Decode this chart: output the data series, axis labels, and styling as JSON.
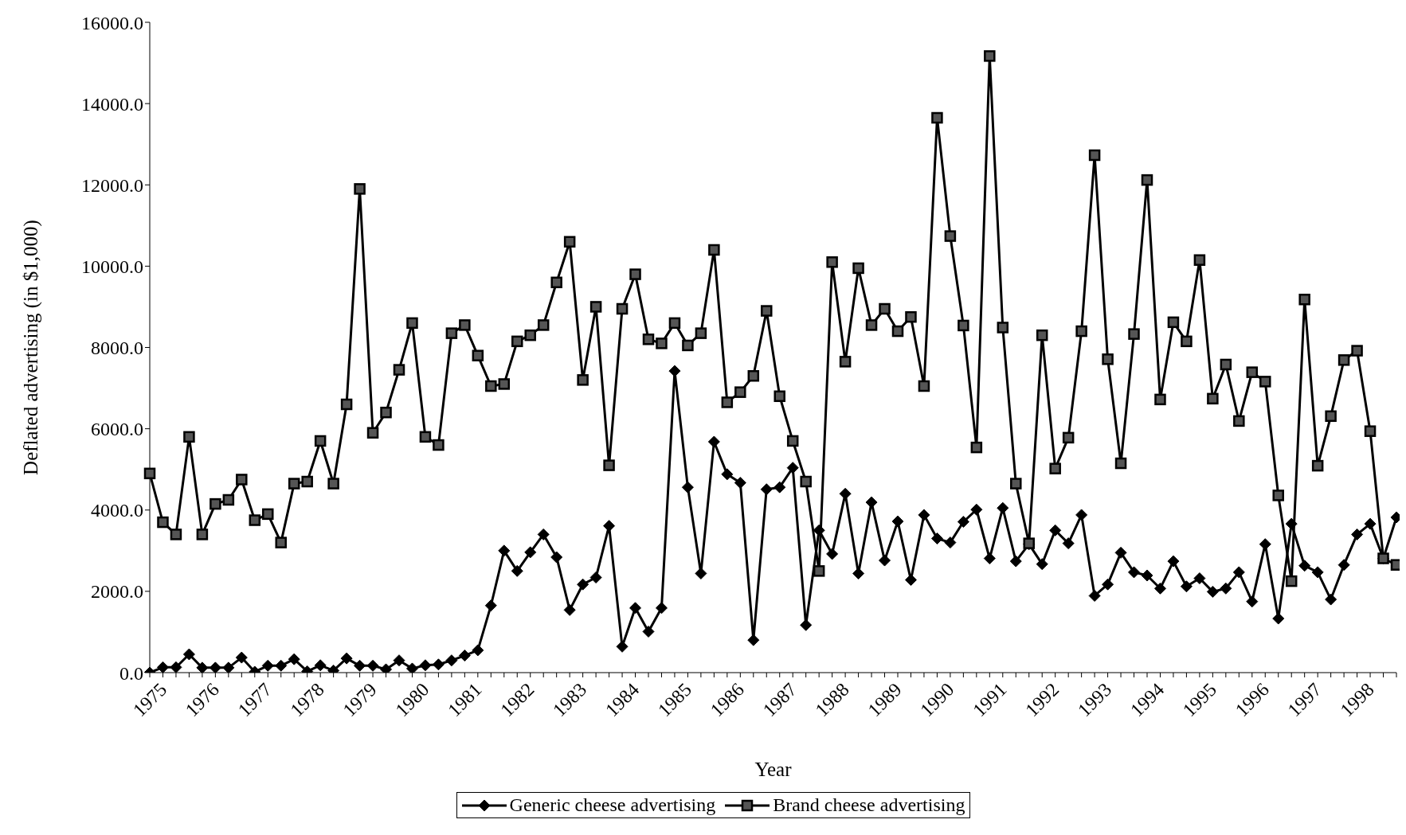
{
  "chart_data": {
    "type": "line",
    "xlabel": "Year",
    "ylabel": "Deflated advertising (in $1,000)",
    "categories": [
      "1975",
      null,
      null,
      null,
      "1976",
      null,
      null,
      null,
      "1977",
      null,
      null,
      null,
      "1978",
      null,
      null,
      null,
      "1979",
      null,
      null,
      null,
      "1980",
      null,
      null,
      null,
      "1981",
      null,
      null,
      null,
      "1982",
      null,
      null,
      null,
      "1983",
      null,
      null,
      null,
      "1984",
      null,
      null,
      null,
      "1985",
      null,
      null,
      null,
      "1986",
      null,
      null,
      null,
      "1987",
      null,
      null,
      null,
      "1988",
      null,
      null,
      null,
      "1989",
      null,
      null,
      null,
      "1990",
      null,
      null,
      null,
      "1991",
      null,
      null,
      null,
      "1992",
      null,
      null,
      null,
      "1993",
      null,
      null,
      null,
      "1994",
      null,
      null,
      null,
      "1995",
      null,
      null,
      null,
      "1996",
      null,
      null,
      null,
      "1997",
      null,
      null,
      null,
      "1998",
      null,
      null,
      null
    ],
    "series": [
      {
        "name": "Generic cheese advertising",
        "color": "#000000",
        "marker": "diamond",
        "values": [
          0,
          130,
          130,
          450,
          120,
          120,
          120,
          370,
          20,
          170,
          170,
          330,
          30,
          180,
          50,
          350,
          170,
          170,
          80,
          300,
          100,
          180,
          200,
          300,
          420,
          550,
          1650,
          3000,
          2500,
          2960,
          3400,
          2840,
          1540,
          2170,
          2340,
          3610,
          640,
          1590,
          1010,
          1590,
          7420,
          4560,
          2440,
          5680,
          4880,
          4670,
          800,
          4510,
          4560,
          5040,
          1170,
          3500,
          2920,
          4400,
          2440,
          4190,
          2760,
          3720,
          2280,
          3880,
          3300,
          3200,
          3710,
          4010,
          2810,
          4050,
          2740,
          3160,
          2670,
          3500,
          3180,
          3880,
          1890,
          2170,
          2950,
          2470,
          2390,
          2070,
          2740,
          2120,
          2320,
          1990,
          2070,
          2470,
          1750,
          3160,
          1330,
          3660,
          2630,
          2470,
          1800,
          2650,
          3400,
          3660,
          2810,
          3820
        ]
      },
      {
        "name": "Brand cheese advertising",
        "color": "#000000",
        "marker": "square",
        "values": [
          4900,
          3700,
          3400,
          5800,
          3400,
          4150,
          4250,
          4750,
          3750,
          3900,
          3200,
          4650,
          4700,
          5700,
          4650,
          6600,
          11900,
          5900,
          6400,
          7450,
          8600,
          5800,
          5600,
          8350,
          8550,
          7800,
          7050,
          7100,
          8150,
          8300,
          8550,
          9600,
          10600,
          7200,
          9000,
          5100,
          8950,
          9800,
          8200,
          8100,
          8600,
          8050,
          8350,
          10400,
          6650,
          6900,
          7300,
          8900,
          6800,
          5700,
          4700,
          2500,
          10100,
          7650,
          9950,
          8550,
          8950,
          8400,
          8750,
          7050,
          13650,
          10740,
          8540,
          5540,
          15170,
          8490,
          4650,
          3180,
          8300,
          5020,
          5780,
          8400,
          12730,
          7710,
          5150,
          8330,
          12120,
          6720,
          8620,
          8150,
          10150,
          6740,
          7580,
          6190,
          7390,
          7160,
          4360,
          2250,
          9180,
          5090,
          6310,
          7690,
          7920,
          5940,
          2810,
          2650
        ]
      }
    ],
    "ylim": [
      0,
      16000
    ],
    "yticks": [
      {
        "value": 0,
        "label": "0.0"
      },
      {
        "value": 2000,
        "label": "2000.0"
      },
      {
        "value": 4000,
        "label": "4000.0"
      },
      {
        "value": 6000,
        "label": "6000.0"
      },
      {
        "value": 8000,
        "label": "8000.0"
      },
      {
        "value": 10000,
        "label": "10000.0"
      },
      {
        "value": 12000,
        "label": "12000.0"
      },
      {
        "value": 14000,
        "label": "14000.0"
      },
      {
        "value": 16000,
        "label": "16000.0"
      }
    ],
    "grid": false,
    "legend": "bottom"
  }
}
